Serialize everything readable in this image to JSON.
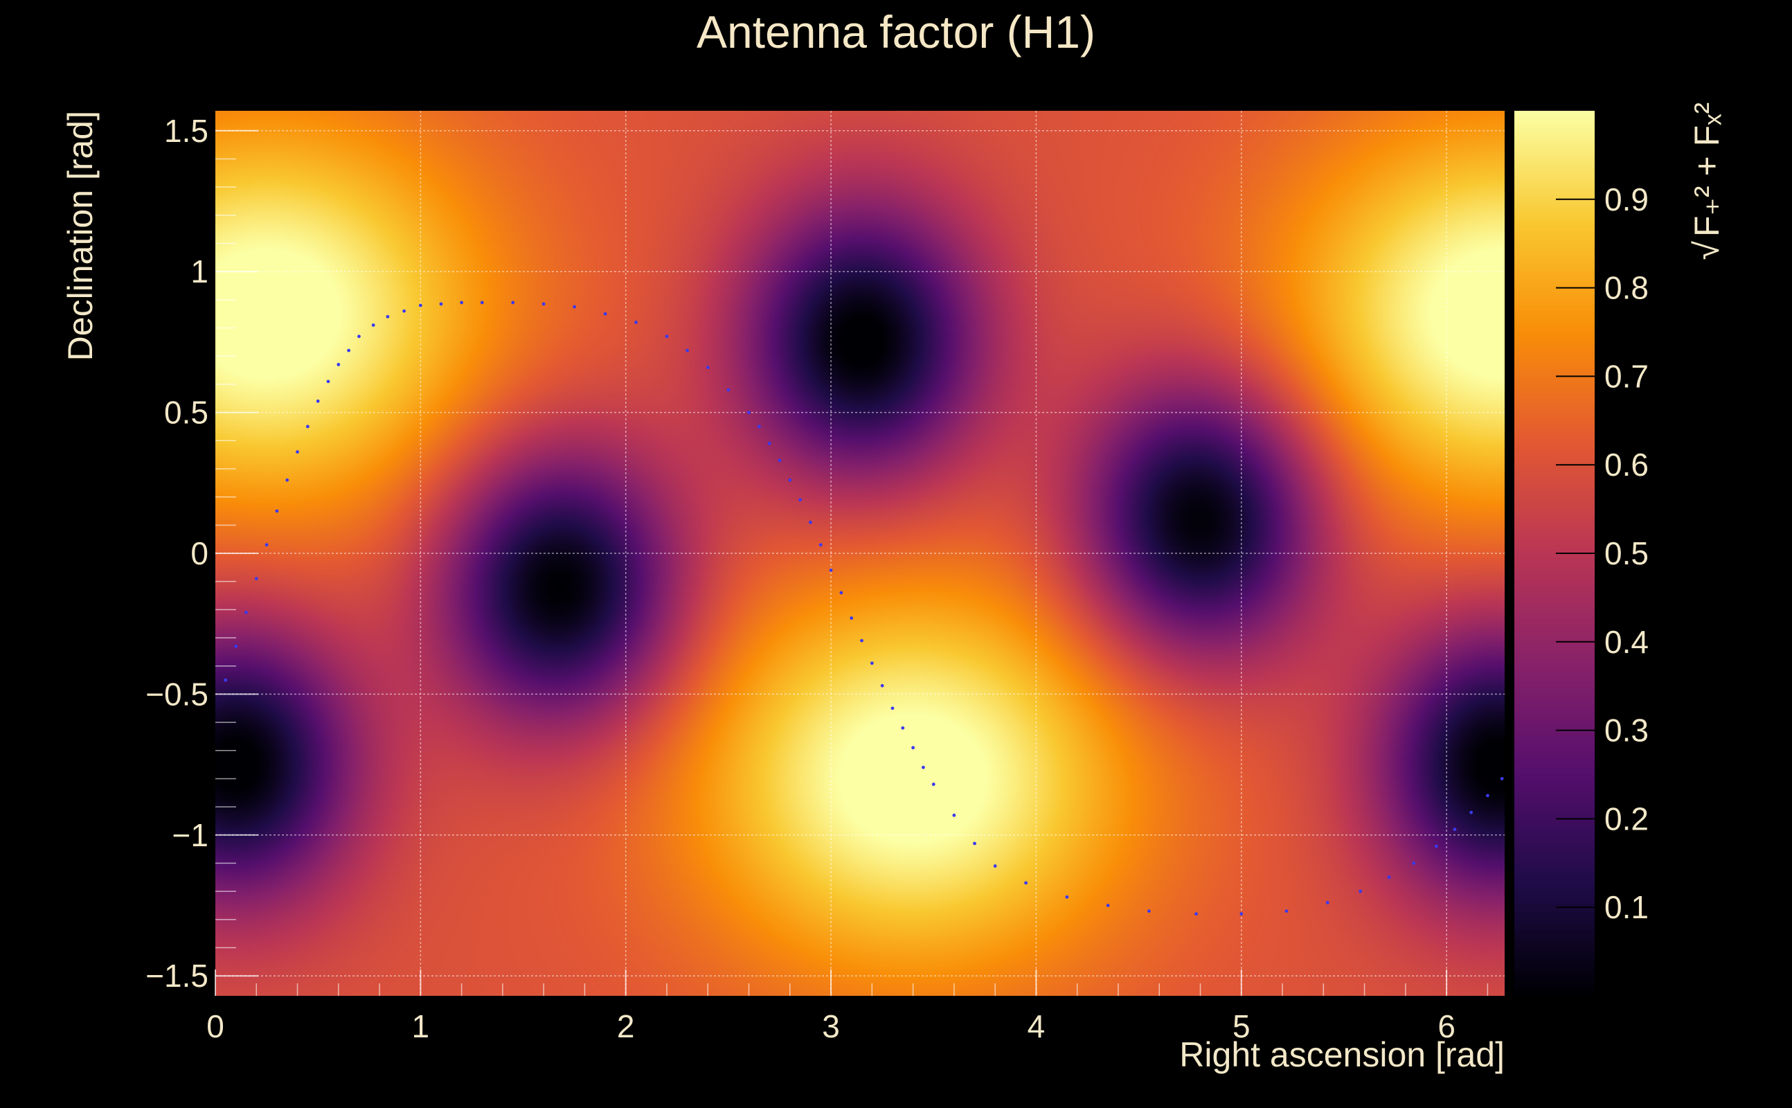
{
  "chart_data": {
    "type": "heatmap",
    "title": "Antenna factor (H1)",
    "xlabel": "Right ascension [rad]",
    "ylabel": "Declination [rad]",
    "zlabel": "√F₊² + Fₓ²",
    "zlabel_parts": {
      "radical": "√",
      "body": "F₊² + Fₓ²"
    },
    "xlim": [
      0,
      6.283
    ],
    "ylim": [
      -1.5708,
      1.5708
    ],
    "zlim": [
      0,
      1
    ],
    "x_ticks": [
      0,
      1,
      2,
      3,
      4,
      5,
      6
    ],
    "x_tick_labels": [
      "0",
      "1",
      "2",
      "3",
      "4",
      "5",
      "6"
    ],
    "y_ticks": [
      -1.5,
      -1,
      -0.5,
      0,
      0.5,
      1,
      1.5
    ],
    "y_tick_labels": [
      "−1.5",
      "−1",
      "−0.5",
      "0",
      "0.5",
      "1",
      "1.5"
    ],
    "z_ticks": [
      0.1,
      0.2,
      0.3,
      0.4,
      0.5,
      0.6,
      0.7,
      0.8,
      0.9
    ],
    "z_tick_labels": [
      "0.1",
      "0.2",
      "0.3",
      "0.4",
      "0.5",
      "0.6",
      "0.7",
      "0.8",
      "0.9"
    ],
    "grid": true,
    "colormap": [
      "#000004",
      "#1f0c48",
      "#550f6d",
      "#88226a",
      "#ba3655",
      "#e35933",
      "#f98e09",
      "#f9c932",
      "#fcffa4"
    ],
    "maxima_bright": [
      {
        "ra": 0.25,
        "dec": 0.85
      },
      {
        "ra": 6.28,
        "dec": 0.85
      },
      {
        "ra": 3.4,
        "dec": -0.8
      }
    ],
    "minima_dark": [
      {
        "ra": 3.15,
        "dec": 0.75
      },
      {
        "ra": 1.68,
        "dec": -0.12
      },
      {
        "ra": 4.8,
        "dec": 0.12
      },
      {
        "ra": 0.1,
        "dec": -0.75
      },
      {
        "ra": 6.25,
        "dec": -0.75
      }
    ],
    "series": [
      {
        "type": "scatter",
        "color": "#3a3af0",
        "x": [
          0.05,
          0.1,
          0.15,
          0.2,
          0.25,
          0.3,
          0.35,
          0.4,
          0.45,
          0.5,
          0.55,
          0.6,
          0.65,
          0.7,
          0.77,
          0.84,
          0.92,
          1.0,
          1.1,
          1.2,
          1.3,
          1.45,
          1.6,
          1.75,
          1.9,
          2.05,
          2.2,
          2.3,
          2.4,
          2.5,
          2.6,
          2.65,
          2.7,
          2.75,
          2.8,
          2.85,
          2.9,
          2.95,
          3.0,
          3.05,
          3.1,
          3.15,
          3.2,
          3.25,
          3.3,
          3.35,
          3.4,
          3.45,
          3.5,
          3.6,
          3.7,
          3.8,
          3.95,
          4.15,
          4.35,
          4.55,
          4.78,
          5.0,
          5.22,
          5.42,
          5.58,
          5.72,
          5.84,
          5.95,
          6.04,
          6.12,
          6.2,
          6.27
        ],
        "y": [
          -0.45,
          -0.33,
          -0.21,
          -0.09,
          0.03,
          0.15,
          0.26,
          0.36,
          0.45,
          0.54,
          0.61,
          0.67,
          0.72,
          0.77,
          0.81,
          0.84,
          0.86,
          0.88,
          0.885,
          0.89,
          0.89,
          0.89,
          0.885,
          0.875,
          0.85,
          0.82,
          0.77,
          0.72,
          0.66,
          0.58,
          0.5,
          0.45,
          0.39,
          0.33,
          0.26,
          0.19,
          0.11,
          0.03,
          -0.06,
          -0.14,
          -0.23,
          -0.31,
          -0.39,
          -0.47,
          -0.55,
          -0.62,
          -0.69,
          -0.76,
          -0.82,
          -0.93,
          -1.03,
          -1.11,
          -1.17,
          -1.22,
          -1.25,
          -1.27,
          -1.28,
          -1.28,
          -1.27,
          -1.24,
          -1.2,
          -1.15,
          -1.1,
          -1.04,
          -0.98,
          -0.92,
          -0.86,
          -0.8
        ]
      }
    ]
  }
}
